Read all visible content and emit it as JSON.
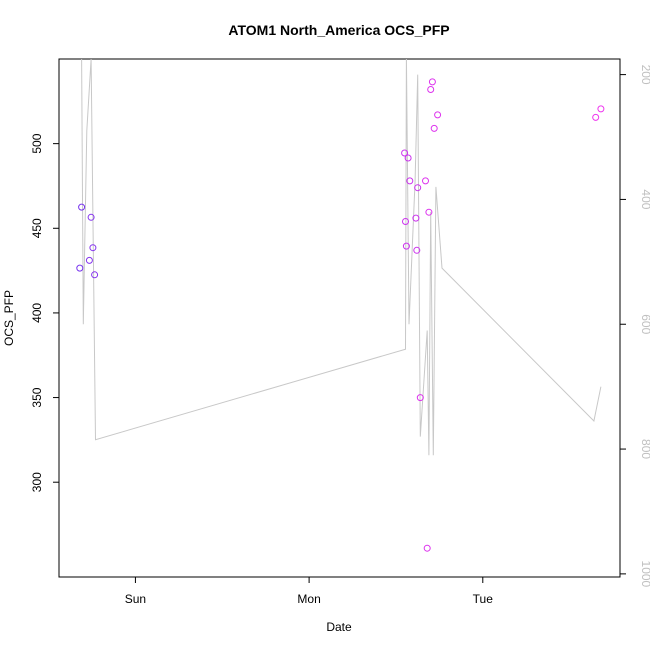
{
  "chart_data": {
    "type": "scatter",
    "title": "ATOM1 North_America OCS_PFP",
    "xlabel": "Date",
    "ylabel": "OCS_PFP",
    "x_ticks": [
      {
        "label": "Sun",
        "value": 1.0
      },
      {
        "label": "Mon",
        "value": 2.0
      },
      {
        "label": "Tue",
        "value": 3.0
      }
    ],
    "xlim": [
      0.56,
      3.79
    ],
    "y_ticks": [
      300,
      350,
      400,
      450,
      500
    ],
    "ylim": [
      244,
      550
    ],
    "y2_ticks": [
      200,
      400,
      600,
      800,
      1000
    ],
    "y2lim": [
      1005,
      175
    ],
    "grid": false,
    "series": [
      {
        "role": "points",
        "shape": "circle-open",
        "points": [
          {
            "x": 0.68,
            "y": 426.5,
            "color": "#7733ee"
          },
          {
            "x": 0.69,
            "y": 462.5,
            "color": "#7733ee"
          },
          {
            "x": 0.735,
            "y": 431.0,
            "color": "#8533ee"
          },
          {
            "x": 0.745,
            "y": 456.5,
            "color": "#8533ee"
          },
          {
            "x": 0.755,
            "y": 438.5,
            "color": "#8533ee"
          },
          {
            "x": 0.765,
            "y": 422.5,
            "color": "#8533ee"
          },
          {
            "x": 2.55,
            "y": 494.5,
            "color": "#cc33ee"
          },
          {
            "x": 2.555,
            "y": 454.0,
            "color": "#cc33ee"
          },
          {
            "x": 2.56,
            "y": 439.5,
            "color": "#cc33ee"
          },
          {
            "x": 2.57,
            "y": 491.5,
            "color": "#cc33ee"
          },
          {
            "x": 2.58,
            "y": 478.0,
            "color": "#cc33ee"
          },
          {
            "x": 2.615,
            "y": 456.0,
            "color": "#cc33ee"
          },
          {
            "x": 2.62,
            "y": 437.0,
            "color": "#cc33ee"
          },
          {
            "x": 2.625,
            "y": 474.0,
            "color": "#cc33ee"
          },
          {
            "x": 2.64,
            "y": 350.0,
            "color": "#dd33ee"
          },
          {
            "x": 2.67,
            "y": 478.0,
            "color": "#dd33ee"
          },
          {
            "x": 2.68,
            "y": 261.0,
            "color": "#dd33ee"
          },
          {
            "x": 2.69,
            "y": 459.5,
            "color": "#dd33ee"
          },
          {
            "x": 2.7,
            "y": 532.0,
            "color": "#dd33ee"
          },
          {
            "x": 2.71,
            "y": 536.5,
            "color": "#dd33ee"
          },
          {
            "x": 2.72,
            "y": 509.0,
            "color": "#dd33ee"
          },
          {
            "x": 2.74,
            "y": 517.0,
            "color": "#dd33ee"
          },
          {
            "x": 3.65,
            "y": 515.5,
            "color": "#ee33ee"
          },
          {
            "x": 3.68,
            "y": 520.5,
            "color": "#ee33ee"
          }
        ]
      },
      {
        "role": "line",
        "axis": "right",
        "color": "#c8c8c8",
        "points": [
          {
            "x": 0.69,
            "y": 170
          },
          {
            "x": 0.7,
            "y": 600
          },
          {
            "x": 0.72,
            "y": 290
          },
          {
            "x": 0.745,
            "y": 175
          },
          {
            "x": 0.77,
            "y": 785
          },
          {
            "x": 2.555,
            "y": 640
          },
          {
            "x": 2.56,
            "y": 170
          },
          {
            "x": 2.575,
            "y": 600
          },
          {
            "x": 2.61,
            "y": 370
          },
          {
            "x": 2.625,
            "y": 200
          },
          {
            "x": 2.64,
            "y": 780
          },
          {
            "x": 2.68,
            "y": 610
          },
          {
            "x": 2.69,
            "y": 810
          },
          {
            "x": 2.7,
            "y": 420
          },
          {
            "x": 2.715,
            "y": 810
          },
          {
            "x": 2.73,
            "y": 380
          },
          {
            "x": 2.765,
            "y": 510
          },
          {
            "x": 3.64,
            "y": 755
          },
          {
            "x": 3.68,
            "y": 700
          }
        ]
      }
    ]
  }
}
